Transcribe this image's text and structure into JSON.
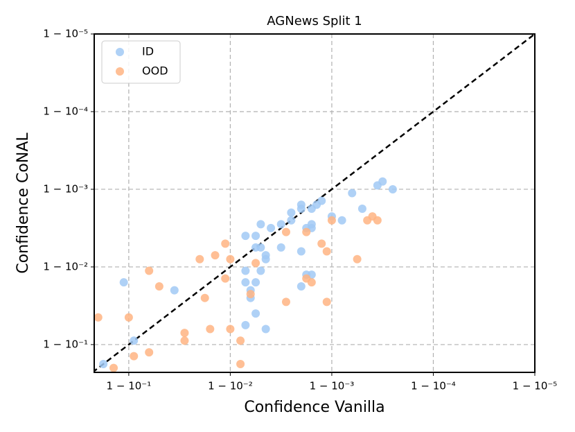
{
  "chart_data": {
    "type": "scatter",
    "title": "AGNews Split 1",
    "xlabel": "Confidence Vanilla",
    "ylabel": "Confidence CoNAL",
    "xscale": "one-minus-log",
    "yscale": "one-minus-log",
    "xlim": [
      0.781,
      0.99999
    ],
    "ylim": [
      0.772,
      0.99999
    ],
    "xticks": [
      {
        "value": 0.9,
        "label": "1 − 10⁻¹"
      },
      {
        "value": 0.99,
        "label": "1 − 10⁻²"
      },
      {
        "value": 0.999,
        "label": "1 − 10⁻³"
      },
      {
        "value": 0.9999,
        "label": "1 − 10⁻⁴"
      },
      {
        "value": 0.99999,
        "label": "1 − 10⁻⁵"
      }
    ],
    "yticks": [
      {
        "value": 0.9,
        "label": "1 − 10⁻¹"
      },
      {
        "value": 0.99,
        "label": "1 − 10⁻²"
      },
      {
        "value": 0.999,
        "label": "1 − 10⁻³"
      },
      {
        "value": 0.9999,
        "label": "1 − 10⁻⁴"
      },
      {
        "value": 0.99999,
        "label": "1 − 10⁻⁵"
      }
    ],
    "grid": true,
    "legend": "upper left",
    "series": [
      {
        "name": "ID",
        "color": "#a1c9f4",
        "x": [
          0.822,
          0.9109,
          0.888,
          0.9645,
          0.99438,
          0.99292,
          0.99499,
          0.99602,
          0.99499,
          0.99684,
          0.99749,
          0.99749,
          0.998,
          0.998,
          0.99842,
          0.99842,
          0.99859,
          0.99874,
          0.999,
          0.999206,
          0.999369,
          0.999499,
          0.999645,
          0.999684,
          0.999749,
          0.99684,
          0.99822,
          0.99842,
          0.99553,
          0.99438,
          0.99553,
          0.998,
          0.99822,
          0.99842,
          0.99292,
          0.99292,
          0.99438,
          0.99499,
          0.998,
          0.99369,
          0.99369,
          0.99438,
          0.99292,
          0.99553
        ],
        "values": [
          0.822,
          0.9109,
          0.9842,
          0.98,
          0.99602,
          0.99602,
          0.99438,
          0.99684,
          0.99718,
          0.99718,
          0.998,
          0.99749,
          0.99822,
          0.99842,
          0.99684,
          0.99822,
          0.99842,
          0.99859,
          0.99776,
          0.99749,
          0.99888,
          0.99822,
          0.999109,
          0.999206,
          0.999,
          0.99438,
          0.99684,
          0.99718,
          0.99292,
          0.99438,
          0.99206,
          0.99369,
          0.9874,
          0.9874,
          0.9888,
          0.9842,
          0.9842,
          0.9888,
          0.9822,
          0.98,
          0.9749,
          0.9602,
          0.9438,
          0.9369
        ]
      },
      {
        "name": "OOD",
        "color": "#ffb482",
        "x": [
          0.8,
          0.9,
          0.9109,
          0.9369,
          0.9369,
          0.9499,
          0.9822,
          0.9842,
          0.9718,
          0.9718,
          0.9888,
          0.9859,
          0.98,
          0.99,
          0.9888,
          0.99,
          0.99206,
          0.99206,
          0.859,
          0.99369,
          0.99438,
          0.99718,
          0.99718,
          0.99822,
          0.99874,
          0.99888,
          0.99822,
          0.99842,
          0.99888,
          0.999438,
          0.999,
          0.999553,
          0.999602,
          0.999645
        ],
        "values": [
          0.9553,
          0.9553,
          0.859,
          0.874,
          0.9888,
          0.9822,
          0.9749,
          0.9369,
          0.9292,
          0.9109,
          0.99499,
          0.99292,
          0.99206,
          0.99206,
          0.9859,
          0.9369,
          0.9109,
          0.822,
          0.8,
          0.9776,
          0.99109,
          0.9718,
          0.99645,
          0.99645,
          0.99499,
          0.99369,
          0.9859,
          0.9842,
          0.9718,
          0.99206,
          0.99749,
          0.99749,
          0.99776,
          0.99749
        ]
      }
    ]
  }
}
